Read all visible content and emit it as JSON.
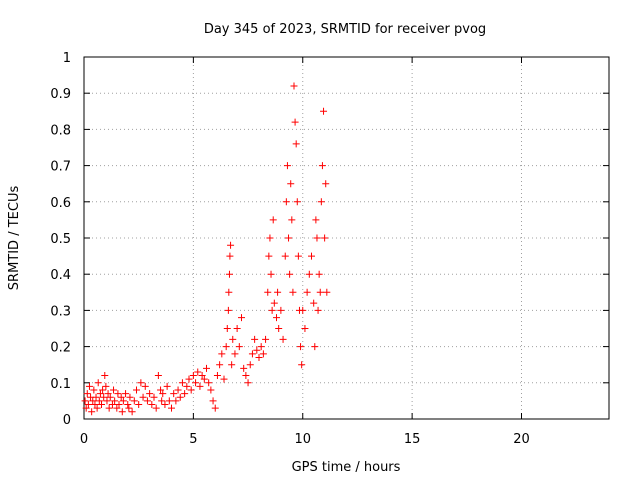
{
  "chart_data": {
    "type": "scatter",
    "title": "Day 345 of 2023, SRMTID for receiver pvog",
    "xlabel": "GPS time / hours",
    "ylabel": "SRMTID / TECUs",
    "xlim": [
      0,
      24
    ],
    "ylim": [
      0,
      1
    ],
    "x_ticks": [
      0,
      5,
      10,
      15,
      20
    ],
    "x_tick_labels": [
      "0",
      "5",
      "10",
      "15",
      "20"
    ],
    "y_ticks": [
      0,
      0.1,
      0.2,
      0.3,
      0.4,
      0.5,
      0.6,
      0.7,
      0.8,
      0.9,
      1
    ],
    "y_tick_labels": [
      "0",
      "0.1",
      "0.2",
      "0.3",
      "0.4",
      "0.5",
      "0.6",
      "0.7",
      "0.8",
      "0.9",
      "1"
    ],
    "grid": true,
    "marker": "+",
    "series": [
      {
        "name": "SRMTID",
        "color": "#ff0000",
        "points": [
          [
            0.05,
            0.05
          ],
          [
            0.1,
            0.03
          ],
          [
            0.15,
            0.07
          ],
          [
            0.2,
            0.04
          ],
          [
            0.25,
            0.09
          ],
          [
            0.3,
            0.06
          ],
          [
            0.35,
            0.02
          ],
          [
            0.4,
            0.05
          ],
          [
            0.45,
            0.08
          ],
          [
            0.5,
            0.04
          ],
          [
            0.55,
            0.06
          ],
          [
            0.6,
            0.03
          ],
          [
            0.65,
            0.1
          ],
          [
            0.7,
            0.05
          ],
          [
            0.75,
            0.07
          ],
          [
            0.8,
            0.04
          ],
          [
            0.85,
            0.08
          ],
          [
            0.9,
            0.06
          ],
          [
            0.95,
            0.12
          ],
          [
            1.0,
            0.09
          ],
          [
            1.05,
            0.05
          ],
          [
            1.1,
            0.07
          ],
          [
            1.15,
            0.03
          ],
          [
            1.2,
            0.06
          ],
          [
            1.3,
            0.04
          ],
          [
            1.35,
            0.08
          ],
          [
            1.4,
            0.05
          ],
          [
            1.5,
            0.03
          ],
          [
            1.55,
            0.07
          ],
          [
            1.6,
            0.04
          ],
          [
            1.7,
            0.06
          ],
          [
            1.75,
            0.02
          ],
          [
            1.8,
            0.05
          ],
          [
            1.9,
            0.07
          ],
          [
            2.0,
            0.04
          ],
          [
            2.05,
            0.03
          ],
          [
            2.1,
            0.06
          ],
          [
            2.2,
            0.02
          ],
          [
            2.3,
            0.05
          ],
          [
            2.4,
            0.08
          ],
          [
            2.5,
            0.04
          ],
          [
            2.6,
            0.1
          ],
          [
            2.7,
            0.06
          ],
          [
            2.8,
            0.09
          ],
          [
            2.9,
            0.05
          ],
          [
            3.0,
            0.07
          ],
          [
            3.1,
            0.04
          ],
          [
            3.2,
            0.06
          ],
          [
            3.3,
            0.03
          ],
          [
            3.4,
            0.12
          ],
          [
            3.5,
            0.08
          ],
          [
            3.55,
            0.05
          ],
          [
            3.6,
            0.07
          ],
          [
            3.7,
            0.04
          ],
          [
            3.8,
            0.09
          ],
          [
            3.9,
            0.05
          ],
          [
            4.0,
            0.03
          ],
          [
            4.1,
            0.07
          ],
          [
            4.2,
            0.05
          ],
          [
            4.3,
            0.08
          ],
          [
            4.4,
            0.06
          ],
          [
            4.5,
            0.1
          ],
          [
            4.6,
            0.07
          ],
          [
            4.7,
            0.09
          ],
          [
            4.8,
            0.11
          ],
          [
            4.9,
            0.08
          ],
          [
            5.0,
            0.12
          ],
          [
            5.1,
            0.1
          ],
          [
            5.2,
            0.13
          ],
          [
            5.3,
            0.09
          ],
          [
            5.4,
            0.12
          ],
          [
            5.5,
            0.11
          ],
          [
            5.6,
            0.14
          ],
          [
            5.7,
            0.1
          ],
          [
            5.8,
            0.08
          ],
          [
            5.9,
            0.05
          ],
          [
            6.0,
            0.03
          ],
          [
            6.1,
            0.12
          ],
          [
            6.2,
            0.15
          ],
          [
            6.3,
            0.18
          ],
          [
            6.4,
            0.11
          ],
          [
            6.5,
            0.2
          ],
          [
            6.55,
            0.25
          ],
          [
            6.6,
            0.3
          ],
          [
            6.62,
            0.35
          ],
          [
            6.65,
            0.4
          ],
          [
            6.67,
            0.45
          ],
          [
            6.7,
            0.48
          ],
          [
            6.75,
            0.15
          ],
          [
            6.8,
            0.22
          ],
          [
            6.9,
            0.18
          ],
          [
            7.0,
            0.25
          ],
          [
            7.1,
            0.2
          ],
          [
            7.2,
            0.28
          ],
          [
            7.3,
            0.14
          ],
          [
            7.4,
            0.12
          ],
          [
            7.5,
            0.1
          ],
          [
            7.6,
            0.15
          ],
          [
            7.7,
            0.18
          ],
          [
            7.8,
            0.22
          ],
          [
            7.9,
            0.19
          ],
          [
            8.0,
            0.17
          ],
          [
            8.1,
            0.2
          ],
          [
            8.2,
            0.18
          ],
          [
            8.3,
            0.22
          ],
          [
            8.4,
            0.35
          ],
          [
            8.45,
            0.45
          ],
          [
            8.5,
            0.5
          ],
          [
            8.55,
            0.4
          ],
          [
            8.6,
            0.3
          ],
          [
            8.65,
            0.55
          ],
          [
            8.7,
            0.32
          ],
          [
            8.8,
            0.28
          ],
          [
            8.85,
            0.35
          ],
          [
            8.9,
            0.25
          ],
          [
            9.0,
            0.3
          ],
          [
            9.1,
            0.22
          ],
          [
            9.2,
            0.45
          ],
          [
            9.25,
            0.6
          ],
          [
            9.3,
            0.7
          ],
          [
            9.35,
            0.5
          ],
          [
            9.4,
            0.4
          ],
          [
            9.45,
            0.65
          ],
          [
            9.5,
            0.55
          ],
          [
            9.55,
            0.35
          ],
          [
            9.6,
            0.92
          ],
          [
            9.65,
            0.82
          ],
          [
            9.7,
            0.76
          ],
          [
            9.75,
            0.6
          ],
          [
            9.8,
            0.45
          ],
          [
            9.85,
            0.3
          ],
          [
            9.9,
            0.2
          ],
          [
            9.95,
            0.15
          ],
          [
            10.0,
            0.3
          ],
          [
            10.1,
            0.25
          ],
          [
            10.2,
            0.35
          ],
          [
            10.3,
            0.4
          ],
          [
            10.4,
            0.45
          ],
          [
            10.5,
            0.32
          ],
          [
            10.55,
            0.2
          ],
          [
            10.6,
            0.55
          ],
          [
            10.65,
            0.5
          ],
          [
            10.7,
            0.3
          ],
          [
            10.75,
            0.4
          ],
          [
            10.8,
            0.35
          ],
          [
            10.85,
            0.6
          ],
          [
            10.9,
            0.7
          ],
          [
            10.95,
            0.85
          ],
          [
            11.0,
            0.5
          ],
          [
            11.05,
            0.65
          ],
          [
            11.1,
            0.35
          ]
        ]
      }
    ]
  }
}
